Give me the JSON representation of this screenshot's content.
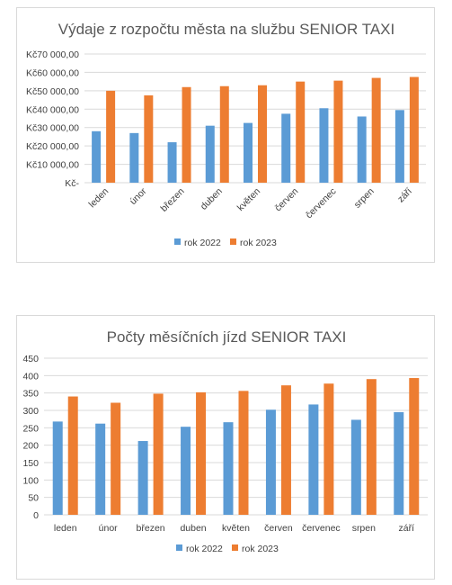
{
  "colors": {
    "series_2022": "#5b9bd5",
    "series_2023": "#ed7d31",
    "grid": "#d9d9d9",
    "text": "#404040",
    "title": "#595959"
  },
  "chart_data": [
    {
      "type": "bar",
      "title": "Výdaje z rozpočtu města na službu SENIOR TAXI",
      "categories": [
        "leden",
        "únor",
        "březen",
        "duben",
        "květen",
        "červen",
        "červenec",
        "srpen",
        "září"
      ],
      "series": [
        {
          "name": "rok 2022",
          "values": [
            28000,
            27000,
            22000,
            31000,
            32500,
            37500,
            40500,
            36000,
            39500
          ]
        },
        {
          "name": "rok 2023",
          "values": [
            50000,
            47500,
            52000,
            52500,
            53000,
            55000,
            55500,
            57000,
            57500
          ]
        }
      ],
      "ylim": [
        0,
        70000
      ],
      "yticks": [
        0,
        10000,
        20000,
        30000,
        40000,
        50000,
        60000,
        70000
      ],
      "ytick_labels": [
        "Kč-",
        "Kč10 000,00",
        "Kč20 000,00",
        "Kč30 000,00",
        "Kč40 000,00",
        "Kč50 000,00",
        "Kč60 000,00",
        "Kč70 000,00"
      ],
      "xtick_rotation": -45,
      "grid": true,
      "legend": "bottom"
    },
    {
      "type": "bar",
      "title": "Počty měsíčních jízd SENIOR TAXI",
      "categories": [
        "leden",
        "únor",
        "březen",
        "duben",
        "květen",
        "červen",
        "červenec",
        "srpen",
        "září"
      ],
      "series": [
        {
          "name": "rok 2022",
          "values": [
            268,
            262,
            212,
            253,
            266,
            302,
            317,
            273,
            295
          ]
        },
        {
          "name": "rok 2023",
          "values": [
            340,
            322,
            348,
            352,
            356,
            372,
            377,
            390,
            393
          ]
        }
      ],
      "ylim": [
        0,
        450
      ],
      "yticks": [
        0,
        50,
        100,
        150,
        200,
        250,
        300,
        350,
        400,
        450
      ],
      "ytick_labels": [
        "0",
        "50",
        "100",
        "150",
        "200",
        "250",
        "300",
        "350",
        "400",
        "450"
      ],
      "xtick_rotation": 0,
      "grid": true,
      "legend": "bottom"
    }
  ]
}
